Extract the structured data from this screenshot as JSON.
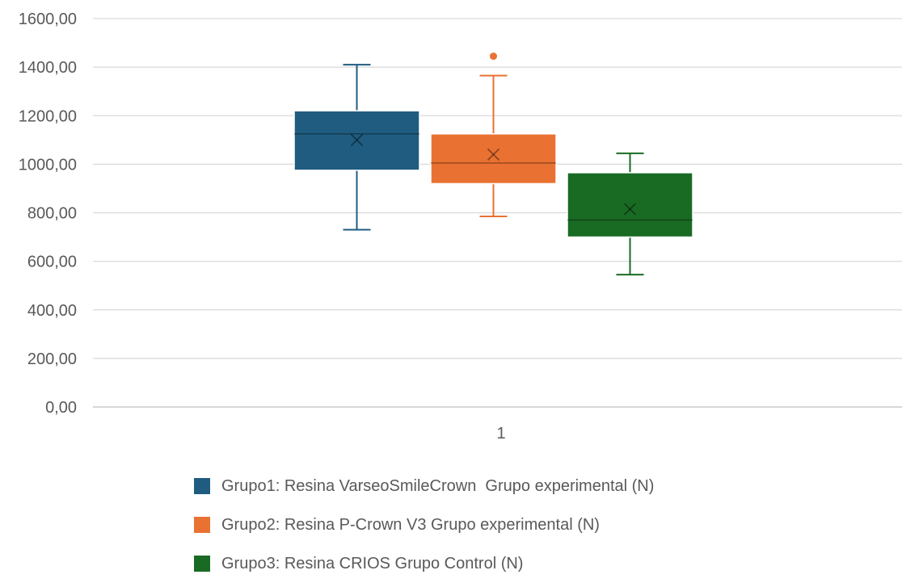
{
  "chart_data": {
    "type": "boxplot",
    "categories": [
      "1"
    ],
    "y_ticks": [
      "0,00",
      "200,00",
      "400,00",
      "600,00",
      "800,00",
      "1000,00",
      "1200,00",
      "1400,00",
      "1600,00"
    ],
    "ylim": [
      0,
      1600
    ],
    "grid": true,
    "legend_position": "bottom",
    "series": [
      {
        "name": "Grupo1: Resina VarseoSmileCrown  Grupo experimental (N)",
        "color": "#1f5c80",
        "min": 730,
        "q1": 975,
        "median": 1125,
        "q3": 1220,
        "max": 1410,
        "mean": 1100,
        "outliers": []
      },
      {
        "name": "Grupo2: Resina P-Crown V3 Grupo experimental (N)",
        "color": "#e97132",
        "min": 785,
        "q1": 920,
        "median": 1005,
        "q3": 1125,
        "max": 1365,
        "mean": 1040,
        "outliers": [
          1445
        ]
      },
      {
        "name": "Grupo3: Resina CRIOS Grupo Control (N)",
        "color": "#196b24",
        "min": 545,
        "q1": 700,
        "median": 770,
        "q3": 965,
        "max": 1045,
        "mean": 815,
        "outliers": []
      }
    ]
  }
}
